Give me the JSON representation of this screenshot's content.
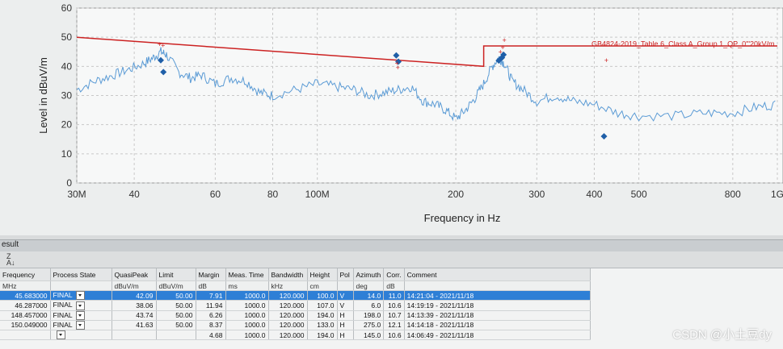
{
  "colors": {
    "trace": "#5b9bd5",
    "limit": "#cc2222",
    "marker": "#1f5fa8",
    "selected_row": "#2e7fd6"
  },
  "chart_data": {
    "type": "line",
    "ylabel": "Level in dBuV/m",
    "xlabel": "Frequency in Hz",
    "x_scale": "log",
    "ylim": [
      0,
      60
    ],
    "xlim_mhz": [
      30,
      1000
    ],
    "y_ticks": [
      0,
      10,
      20,
      30,
      40,
      50,
      60
    ],
    "x_ticks": [
      {
        "v": 30,
        "label": "30M"
      },
      {
        "v": 40,
        "label": "40"
      },
      {
        "v": 60,
        "label": "60"
      },
      {
        "v": 80,
        "label": "80"
      },
      {
        "v": 100,
        "label": "100M"
      },
      {
        "v": 200,
        "label": "200"
      },
      {
        "v": 300,
        "label": "300"
      },
      {
        "v": 400,
        "label": "400"
      },
      {
        "v": 500,
        "label": "500"
      },
      {
        "v": 800,
        "label": "800"
      },
      {
        "v": 1000,
        "label": "1G"
      }
    ],
    "grid": true,
    "limit_label": "GB4824-2019_Table 6_Class A_Group 1_QP_0\"'20kV/m",
    "limit_line": [
      [
        30,
        50
      ],
      [
        230,
        40
      ],
      [
        230,
        47
      ],
      [
        1000,
        47
      ]
    ],
    "series": [
      {
        "kind": "spectrum",
        "points": [
          [
            30,
            32
          ],
          [
            33,
            35
          ],
          [
            36,
            37
          ],
          [
            39,
            39
          ],
          [
            42,
            41
          ],
          [
            44,
            43
          ],
          [
            45.7,
            45
          ],
          [
            47,
            44
          ],
          [
            50,
            38
          ],
          [
            53,
            36
          ],
          [
            56,
            37
          ],
          [
            60,
            34
          ],
          [
            65,
            36
          ],
          [
            70,
            35
          ],
          [
            75,
            31
          ],
          [
            80,
            30
          ],
          [
            90,
            32
          ],
          [
            100,
            34
          ],
          [
            110,
            33
          ],
          [
            120,
            32
          ],
          [
            130,
            30
          ],
          [
            140,
            31
          ],
          [
            150,
            32
          ],
          [
            160,
            33
          ],
          [
            170,
            28
          ],
          [
            180,
            27
          ],
          [
            190,
            25
          ],
          [
            200,
            22
          ],
          [
            210,
            25
          ],
          [
            220,
            29
          ],
          [
            230,
            34
          ],
          [
            240,
            40
          ],
          [
            248,
            43
          ],
          [
            255,
            41
          ],
          [
            265,
            35
          ],
          [
            280,
            32
          ],
          [
            300,
            28
          ],
          [
            330,
            30
          ],
          [
            360,
            28
          ],
          [
            400,
            27
          ],
          [
            450,
            24
          ],
          [
            500,
            23
          ],
          [
            600,
            23
          ],
          [
            700,
            24
          ],
          [
            800,
            24
          ],
          [
            900,
            26
          ],
          [
            1000,
            27
          ]
        ]
      }
    ],
    "qp_markers": [
      [
        45.683,
        42.09
      ],
      [
        46.287,
        38.06
      ],
      [
        148.457,
        43.74
      ],
      [
        150.049,
        41.63
      ],
      [
        248,
        42
      ],
      [
        252,
        43
      ],
      [
        254,
        44
      ],
      [
        420,
        16
      ]
    ],
    "peak_markers": [
      [
        45.4,
        47.5
      ],
      [
        46.2,
        47.2
      ],
      [
        149,
        41
      ],
      [
        149.6,
        39.5
      ],
      [
        250,
        45
      ],
      [
        253,
        46.5
      ],
      [
        255,
        49
      ],
      [
        425,
        42
      ]
    ]
  },
  "results_label": "esult",
  "table": {
    "headers": [
      "Frequency",
      "Process State",
      "QuasiPeak",
      "Limit",
      "Margin",
      "Meas. Time",
      "Bandwidth",
      "Height",
      "Pol",
      "Azimuth",
      "Corr.",
      "Comment"
    ],
    "units": [
      "MHz",
      "",
      "dBuV/m",
      "dBuV/m",
      "dB",
      "ms",
      "kHz",
      "cm",
      "",
      "deg",
      "dB",
      ""
    ],
    "rows": [
      {
        "freq": "45.683000",
        "state": "FINAL",
        "qp": "42.09",
        "limit": "50.00",
        "margin": "7.91",
        "mtime": "1000.0",
        "bw": "120.000",
        "height": "100.0",
        "pol": "V",
        "az": "14.0",
        "corr": "11.0",
        "comment": "14:21:04 - 2021/11/18"
      },
      {
        "freq": "46.287000",
        "state": "FINAL",
        "qp": "38.06",
        "limit": "50.00",
        "margin": "11.94",
        "mtime": "1000.0",
        "bw": "120.000",
        "height": "107.0",
        "pol": "V",
        "az": "6.0",
        "corr": "10.6",
        "comment": "14:19:19 - 2021/11/18"
      },
      {
        "freq": "148.457000",
        "state": "FINAL",
        "qp": "43.74",
        "limit": "50.00",
        "margin": "6.26",
        "mtime": "1000.0",
        "bw": "120.000",
        "height": "194.0",
        "pol": "H",
        "az": "198.0",
        "corr": "10.7",
        "comment": "14:13:39 - 2021/11/18"
      },
      {
        "freq": "150.049000",
        "state": "FINAL",
        "qp": "41.63",
        "limit": "50.00",
        "margin": "8.37",
        "mtime": "1000.0",
        "bw": "120.000",
        "height": "133.0",
        "pol": "H",
        "az": "275.0",
        "corr": "12.1",
        "comment": "14:14:18 - 2021/11/18"
      },
      {
        "freq": "",
        "state": "",
        "qp": "",
        "limit": "",
        "margin": "4.68",
        "mtime": "1000.0",
        "bw": "120.000",
        "height": "194.0",
        "pol": "H",
        "az": "145.0",
        "corr": "10.6",
        "comment": "14:06:49 - 2021/11/18"
      }
    ]
  },
  "watermark": "CSDN @小土豆dy"
}
